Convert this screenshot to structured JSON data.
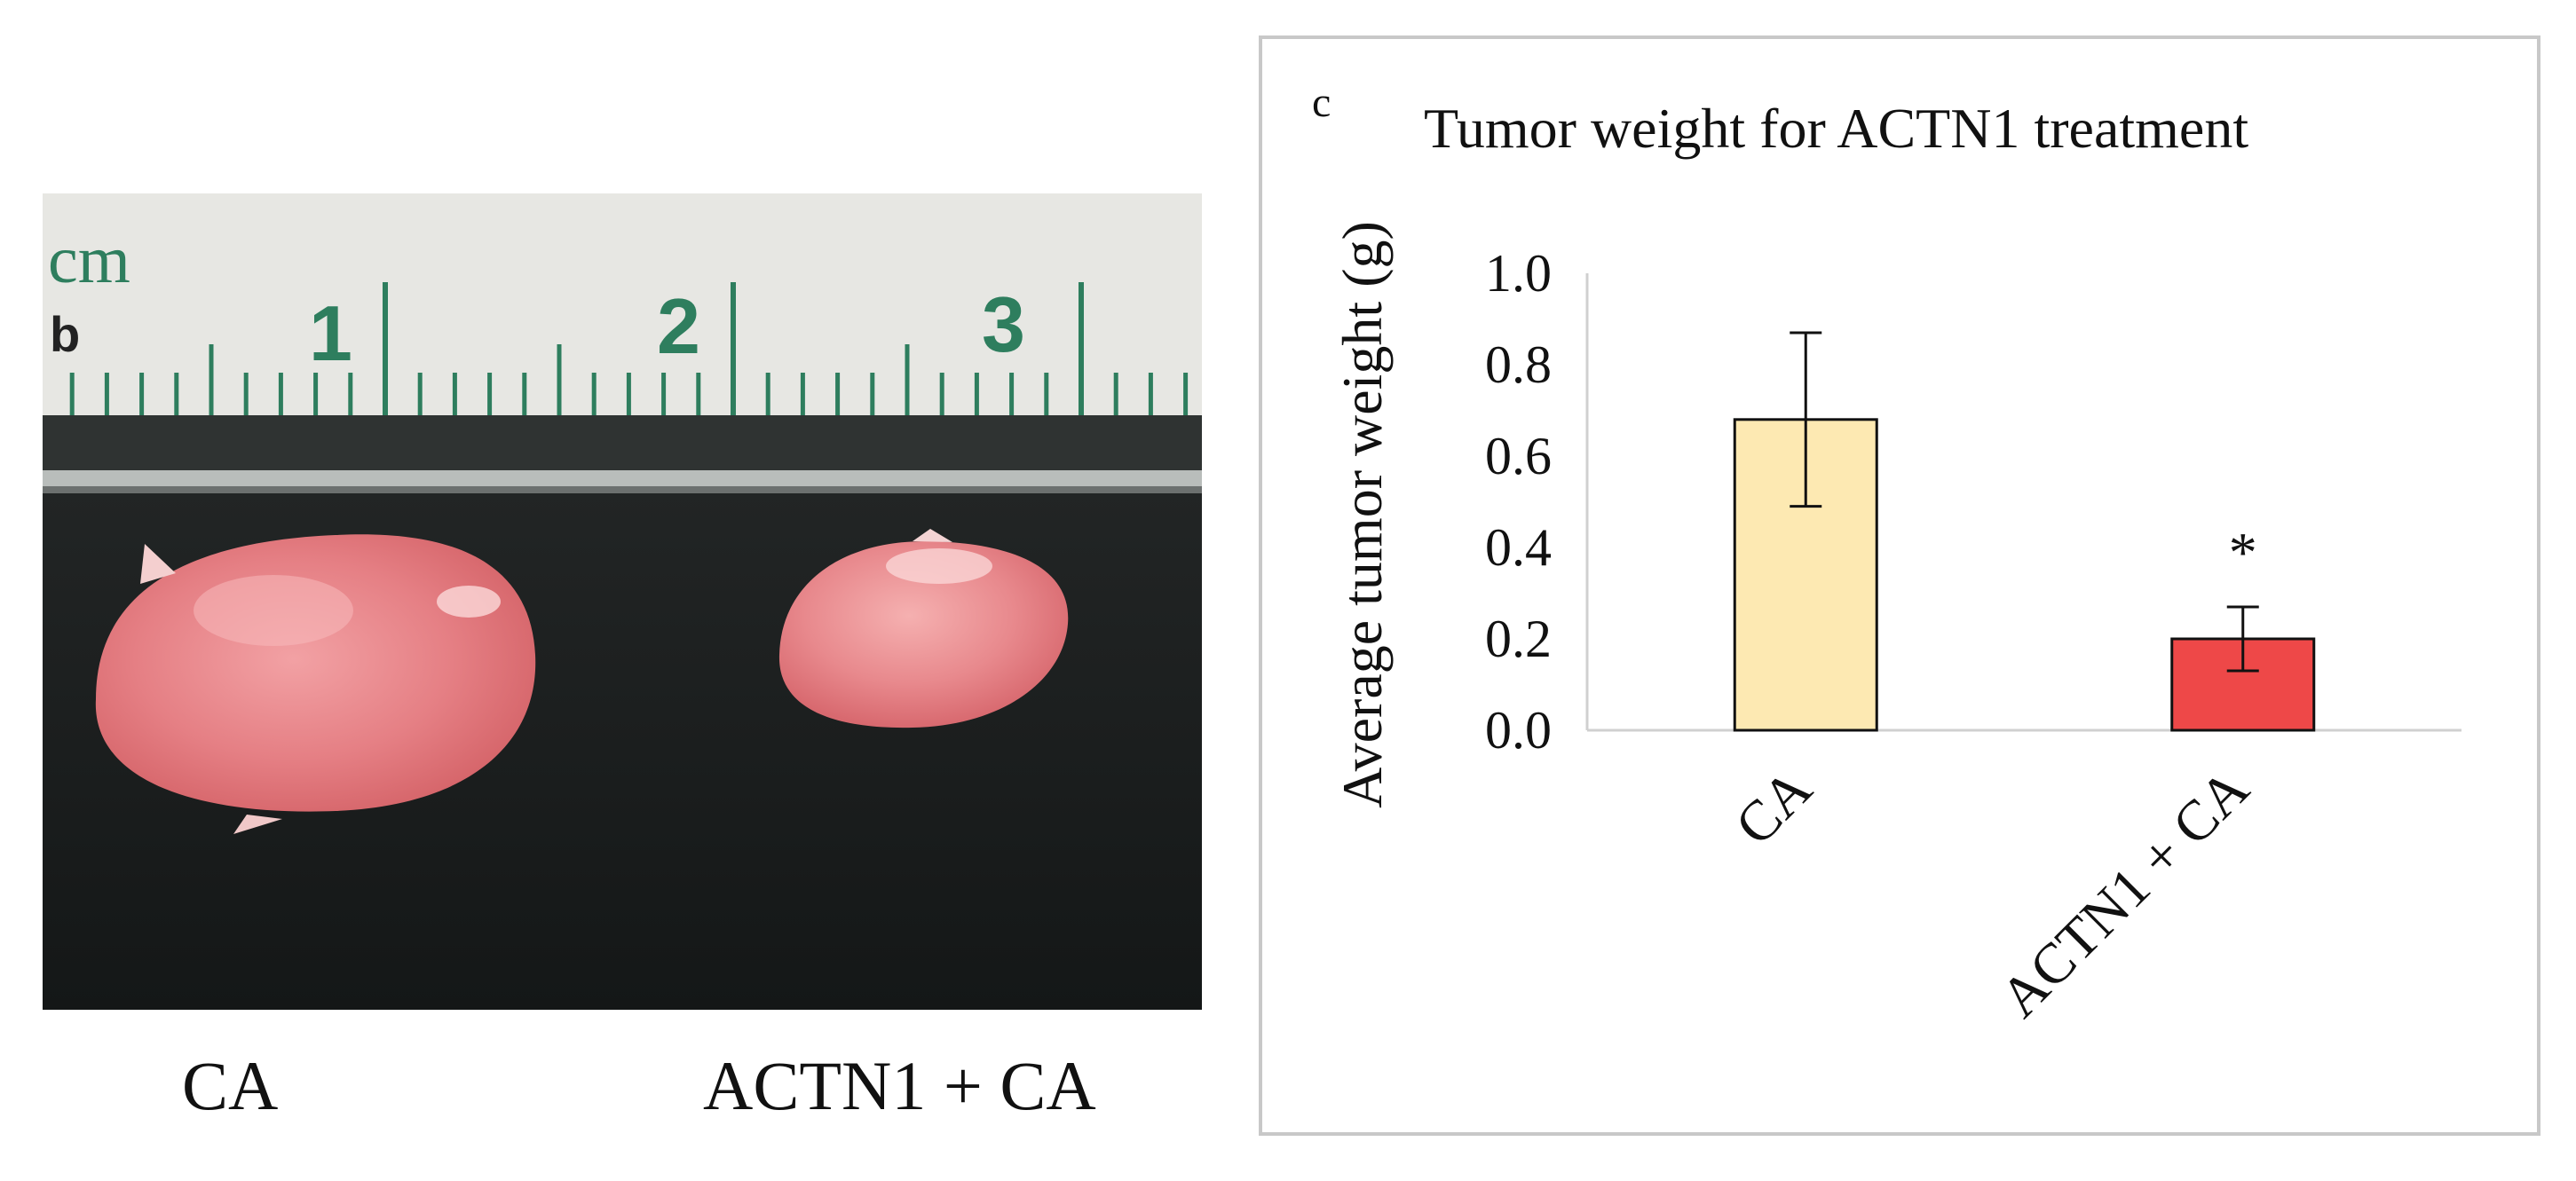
{
  "panel_b": {
    "letter": "b",
    "ruler_unit": "cm",
    "ruler_numbers": [
      "1",
      "2",
      "3"
    ],
    "sample_labels": [
      "CA",
      "ACTN1 + CA"
    ]
  },
  "panel_c": {
    "letter": "c"
  },
  "chart_data": {
    "type": "bar",
    "title": "Tumor weight  for ACTN1 treatment",
    "xlabel": "",
    "ylabel": "Average tumor weight (g)",
    "categories": [
      "CA",
      "ACTN1 + CA"
    ],
    "values": [
      0.68,
      0.2
    ],
    "error": [
      0.19,
      0.07
    ],
    "bar_colors": [
      "#fde9b2",
      "#ee4848"
    ],
    "significance": [
      "",
      "*"
    ],
    "ylim": [
      0.0,
      1.0
    ],
    "yticks": [
      "0.0",
      "0.2",
      "0.4",
      "0.6",
      "0.8",
      "1.0"
    ],
    "grid": false,
    "legend": "none"
  }
}
